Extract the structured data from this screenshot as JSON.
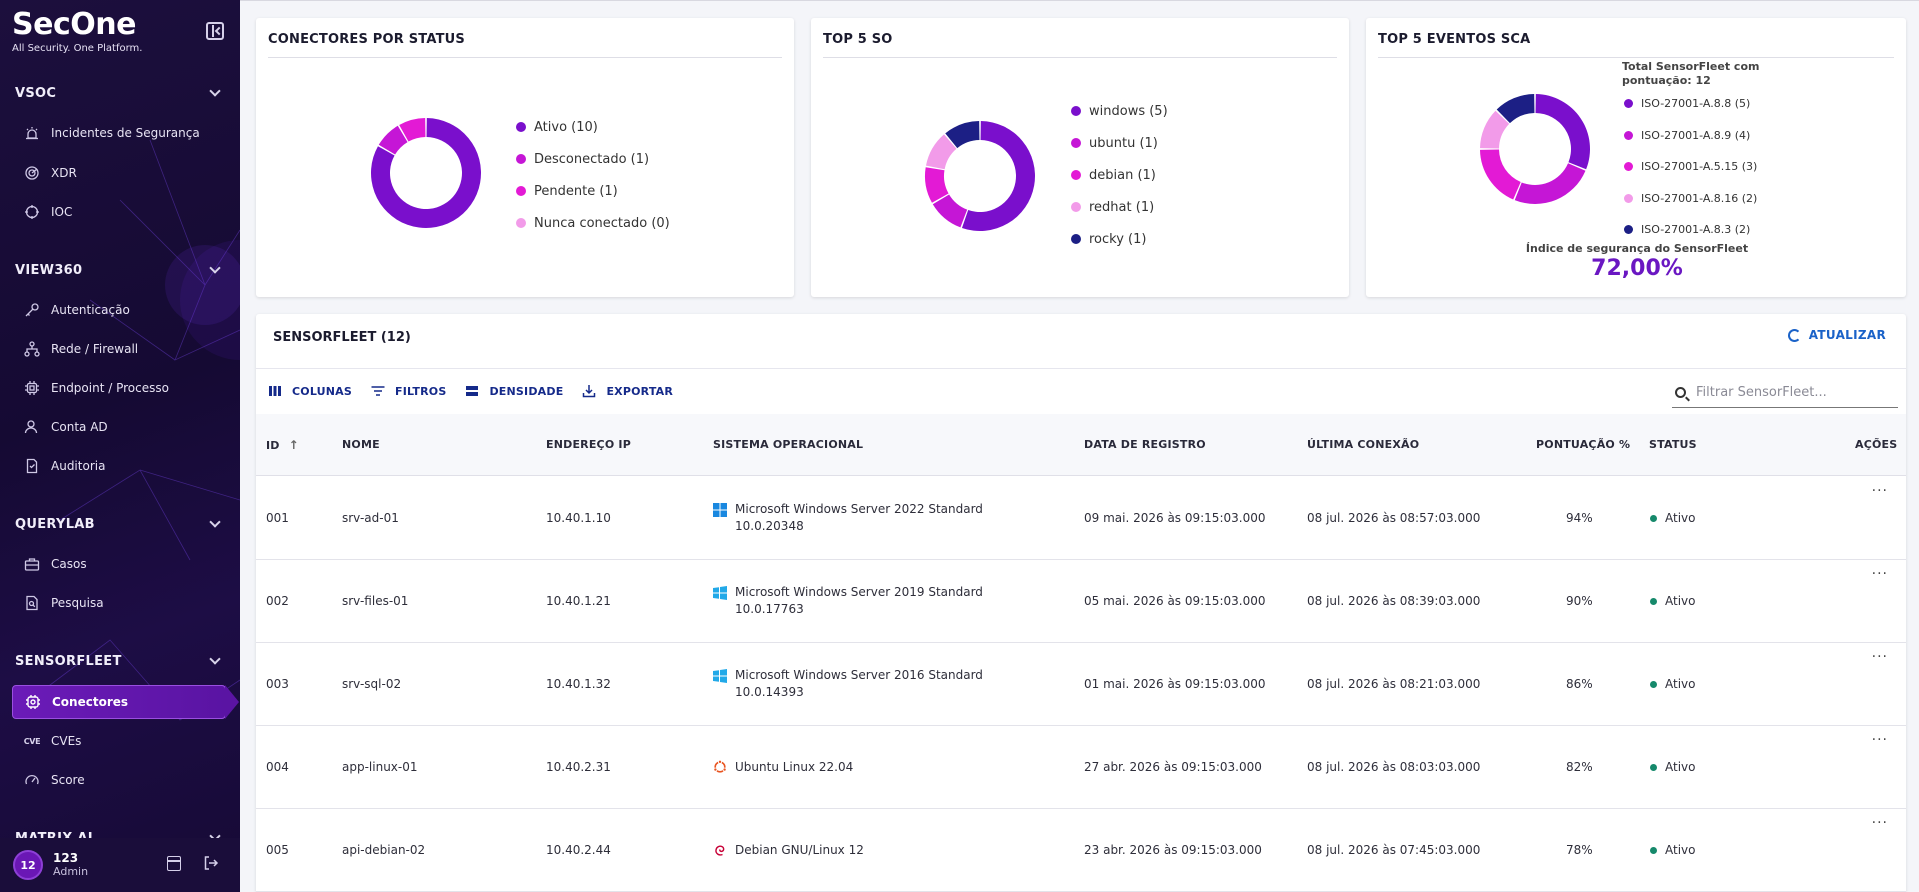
{
  "brand": {
    "name": "SecOne",
    "tagline": "All Security. One Platform."
  },
  "sidebar": {
    "sections": [
      {
        "title": "VSOC",
        "items": [
          {
            "label": "Incidentes de Segurança",
            "icon": "alarm-icon"
          },
          {
            "label": "XDR",
            "icon": "radar-icon"
          },
          {
            "label": "IOC",
            "icon": "crosshair-icon"
          }
        ]
      },
      {
        "title": "VIEW360",
        "items": [
          {
            "label": "Autenticação",
            "icon": "key-icon"
          },
          {
            "label": "Rede / Firewall",
            "icon": "network-icon"
          },
          {
            "label": "Endpoint / Processo",
            "icon": "chip-icon"
          },
          {
            "label": "Conta AD",
            "icon": "user-icon"
          },
          {
            "label": "Auditoria",
            "icon": "document-icon"
          }
        ]
      },
      {
        "title": "QUERYLAB",
        "items": [
          {
            "label": "Casos",
            "icon": "briefcase-icon"
          },
          {
            "label": "Pesquisa",
            "icon": "search-doc-icon"
          }
        ]
      },
      {
        "title": "SENSORFLEET",
        "items": [
          {
            "label": "Conectores",
            "icon": "connector-icon",
            "active": true
          },
          {
            "label": "CVEs",
            "icon": "cve-icon"
          },
          {
            "label": "Score",
            "icon": "gauge-icon"
          }
        ]
      },
      {
        "title": "MATRIX AI",
        "items": []
      }
    ],
    "user": {
      "initials": "12",
      "name": "123",
      "role": "Admin"
    }
  },
  "widgets": {
    "status": {
      "title": "CONECTORES POR STATUS",
      "legend": [
        "Ativo (10)",
        "Desconectado (1)",
        "Pendente (1)",
        "Nunca conectado (0)"
      ]
    },
    "os": {
      "title": "TOP 5 SO",
      "legend": [
        "windows (5)",
        "ubuntu (1)",
        "debian (1)",
        "redhat (1)",
        "rocky (1)"
      ]
    },
    "sca": {
      "title": "TOP 5 EVENTOS SCA",
      "total_label": "Total SensorFleet com pontuação: 12",
      "legend": [
        "ISO-27001-A.8.8 (5)",
        "ISO-27001-A.8.9 (4)",
        "ISO-27001-A.5.15 (3)",
        "ISO-27001-A.8.16 (2)",
        "ISO-27001-A.8.3 (2)"
      ],
      "index_label": "Índice de segurança do SensorFleet",
      "index_value": "72,00%"
    }
  },
  "chart_data": [
    {
      "type": "pie",
      "title": "CONECTORES POR STATUS",
      "categories": [
        "Ativo",
        "Desconectado",
        "Pendente",
        "Nunca conectado"
      ],
      "values": [
        10,
        1,
        1,
        0
      ],
      "colors": [
        "#7a0fcc",
        "#c516d6",
        "#e31ad5",
        "#f29be9"
      ]
    },
    {
      "type": "pie",
      "title": "TOP 5 SO",
      "categories": [
        "windows",
        "ubuntu",
        "debian",
        "redhat",
        "rocky"
      ],
      "values": [
        5,
        1,
        1,
        1,
        1
      ],
      "colors": [
        "#7a0fcc",
        "#c516d6",
        "#e31ad5",
        "#f29be9",
        "#1c1f85"
      ]
    },
    {
      "type": "pie",
      "title": "TOP 5 EVENTOS SCA",
      "categories": [
        "ISO-27001-A.8.8",
        "ISO-27001-A.8.9",
        "ISO-27001-A.5.15",
        "ISO-27001-A.8.16",
        "ISO-27001-A.8.3"
      ],
      "values": [
        5,
        4,
        3,
        2,
        2
      ],
      "colors": [
        "#7a0fcc",
        "#c516d6",
        "#e31ad5",
        "#f29be9",
        "#1c1f85"
      ]
    }
  ],
  "table": {
    "title": "SENSORFLEET (12)",
    "refresh_label": "ATUALIZAR",
    "toolbar": {
      "columns": "COLUNAS",
      "filters": "FILTROS",
      "density": "DENSIDADE",
      "export": "EXPORTAR"
    },
    "search_placeholder": "Filtrar SensorFleet...",
    "headers": [
      "ID",
      "NOME",
      "ENDEREÇO IP",
      "SISTEMA OPERACIONAL",
      "DATA DE REGISTRO",
      "ÚLTIMA CONEXÃO",
      "PONTUAÇÃO %",
      "STATUS",
      "AÇÕES"
    ],
    "rows": [
      {
        "id": "001",
        "name": "srv-ad-01",
        "ip": "10.40.1.10",
        "os_icon": "windows-icon",
        "os": "Microsoft Windows Server 2022 Standard",
        "os_version": "10.0.20348",
        "registered": "09 mai. 2026 às 09:15:03.000",
        "last_seen": "08 jul. 2026 às 08:57:03.000",
        "score": "94%",
        "status": "Ativo"
      },
      {
        "id": "002",
        "name": "srv-files-01",
        "ip": "10.40.1.21",
        "os_icon": "windows-icon",
        "os": "Microsoft Windows Server 2019 Standard",
        "os_version": "10.0.17763",
        "registered": "05 mai. 2026 às 09:15:03.000",
        "last_seen": "08 jul. 2026 às 08:39:03.000",
        "score": "90%",
        "status": "Ativo"
      },
      {
        "id": "003",
        "name": "srv-sql-02",
        "ip": "10.40.1.32",
        "os_icon": "windows-icon",
        "os": "Microsoft Windows Server 2016 Standard",
        "os_version": "10.0.14393",
        "registered": "01 mai. 2026 às 09:15:03.000",
        "last_seen": "08 jul. 2026 às 08:21:03.000",
        "score": "86%",
        "status": "Ativo"
      },
      {
        "id": "004",
        "name": "app-linux-01",
        "ip": "10.40.2.31",
        "os_icon": "ubuntu-icon",
        "os": "Ubuntu Linux 22.04",
        "os_version": "",
        "registered": "27 abr. 2026 às 09:15:03.000",
        "last_seen": "08 jul. 2026 às 08:03:03.000",
        "score": "82%",
        "status": "Ativo"
      },
      {
        "id": "005",
        "name": "api-debian-02",
        "ip": "10.40.2.44",
        "os_icon": "debian-icon",
        "os": "Debian GNU/Linux 12",
        "os_version": "",
        "registered": "23 abr. 2026 às 09:15:03.000",
        "last_seen": "08 jul. 2026 às 07:45:03.000",
        "score": "78%",
        "status": "Ativo"
      }
    ]
  }
}
